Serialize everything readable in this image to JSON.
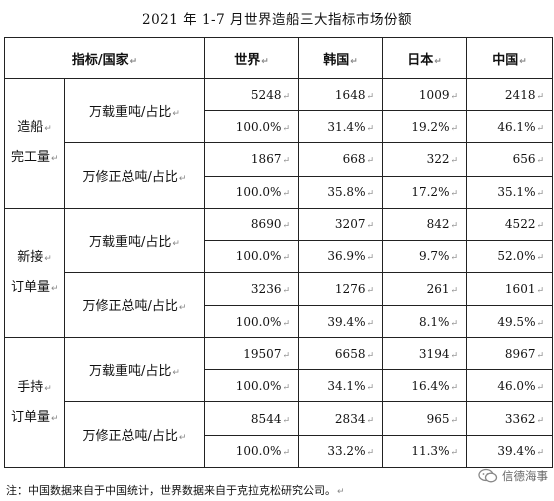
{
  "title": "2021 年 1-7 月世界造船三大指标市场份额",
  "header": {
    "label": "指标/国家",
    "countries": [
      "世界",
      "韩国",
      "日本",
      "中国"
    ]
  },
  "groups": [
    {
      "name_line1": "造船",
      "name_line2": "完工量",
      "metrics": [
        {
          "label": "万载重吨/占比",
          "values": [
            "5248",
            "1648",
            "1009",
            "2418"
          ],
          "shares": [
            "100.0%",
            "31.4%",
            "19.2%",
            "46.1%"
          ]
        },
        {
          "label": "万修正总吨/占比",
          "values": [
            "1867",
            "668",
            "322",
            "656"
          ],
          "shares": [
            "100.0%",
            "35.8%",
            "17.2%",
            "35.1%"
          ]
        }
      ]
    },
    {
      "name_line1": "新接",
      "name_line2": "订单量",
      "metrics": [
        {
          "label": "万载重吨/占比",
          "values": [
            "8690",
            "3207",
            "842",
            "4522"
          ],
          "shares": [
            "100.0%",
            "36.9%",
            "9.7%",
            "52.0%"
          ]
        },
        {
          "label": "万修正总吨/占比",
          "values": [
            "3236",
            "1276",
            "261",
            "1601"
          ],
          "shares": [
            "100.0%",
            "39.4%",
            "8.1%",
            "49.5%"
          ]
        }
      ]
    },
    {
      "name_line1": "手持",
      "name_line2": "订单量",
      "metrics": [
        {
          "label": "万载重吨/占比",
          "values": [
            "19507",
            "6658",
            "3194",
            "8967"
          ],
          "shares": [
            "100.0%",
            "34.1%",
            "16.4%",
            "46.0%"
          ]
        },
        {
          "label": "万修正总吨/占比",
          "values": [
            "8544",
            "2834",
            "965",
            "3362"
          ],
          "shares": [
            "100.0%",
            "33.2%",
            "11.3%",
            "39.4%"
          ]
        }
      ]
    }
  ],
  "footnote": "注：中国数据来自于中国统计，世界数据来自于克拉克松研究公司。",
  "watermark": "信德海事",
  "colors": {
    "border": "#222222",
    "text": "#111111",
    "watermark": "#666666"
  }
}
